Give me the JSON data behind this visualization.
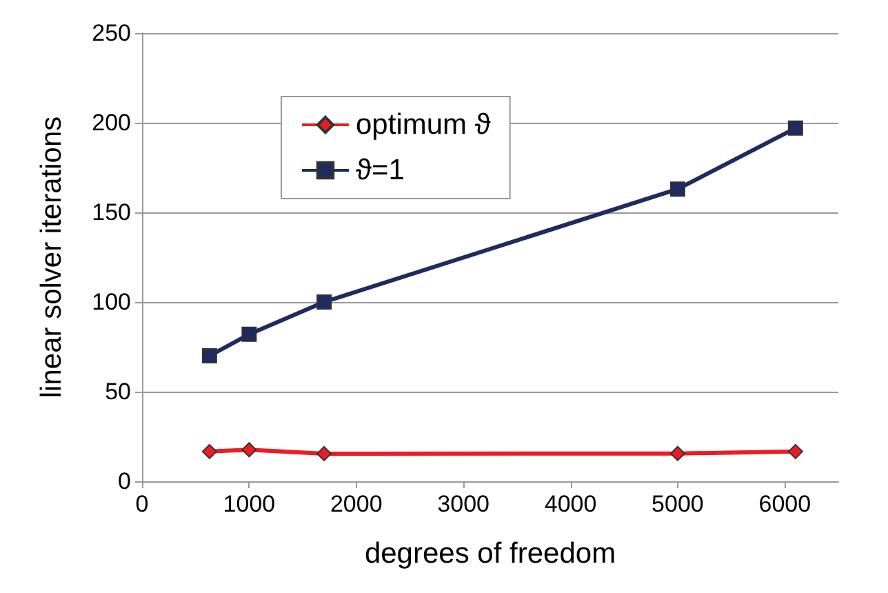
{
  "chart_data": {
    "type": "line",
    "xlabel": "degrees of freedom",
    "ylabel": "linear solver iterations",
    "x": [
      630,
      1000,
      1700,
      5000,
      6100
    ],
    "series": [
      {
        "name": "optimum ϑ",
        "color": "#ed1c24",
        "marker": "diamond",
        "values": [
          16.6,
          17.6,
          15.4,
          15.5,
          16.6
        ]
      },
      {
        "name": "ϑ=1",
        "color": "#1f2a5e",
        "marker": "square",
        "values": [
          70,
          82,
          100,
          163,
          197
        ]
      }
    ],
    "xlim": [
      0,
      6500
    ],
    "xticks": [
      0,
      1000,
      2000,
      3000,
      4000,
      5000,
      6000
    ],
    "ylim": [
      0,
      250
    ],
    "yticks": [
      0,
      50,
      100,
      150,
      200,
      250
    ],
    "grid": "y",
    "legend": "top left"
  }
}
